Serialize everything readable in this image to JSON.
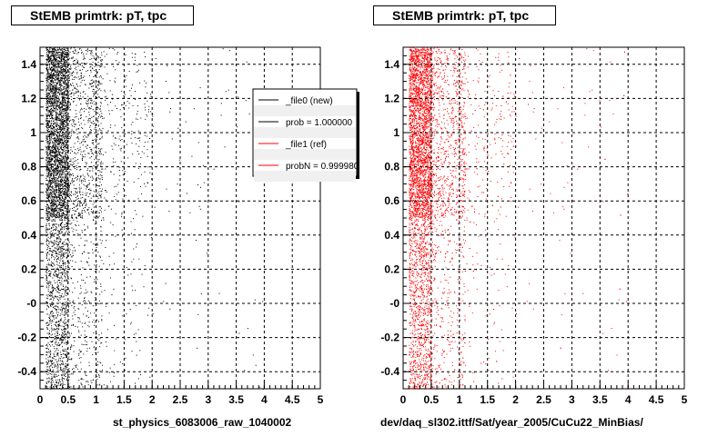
{
  "chart_data": [
    {
      "type": "scatter",
      "title": "StEMB primtrk: pT, tpc",
      "xlabel": "st_physics_6083006_raw_1040002",
      "ylabel": "",
      "xlim": [
        0,
        5
      ],
      "ylim": [
        -0.5,
        1.5
      ],
      "x_ticks": [
        "0",
        "0.5",
        "1",
        "1.5",
        "2",
        "2.5",
        "3",
        "3.5",
        "4",
        "4.5",
        "5"
      ],
      "y_ticks": [
        "-0.4",
        "-0.2",
        "-0",
        "0.2",
        "0.4",
        "0.6",
        "0.8",
        "1",
        "1.2",
        "1.4"
      ],
      "grid": true,
      "legend_position": "top-right",
      "legend": [
        {
          "label": "_file0 (new)",
          "color": "#000000"
        },
        {
          "label": "prob = 1.000000",
          "color": "#000000"
        },
        {
          "label": "_file1 (ref)",
          "color": "#ff0000"
        },
        {
          "label": "probN = 0.999980",
          "color": "#ff0000"
        }
      ],
      "series": [
        {
          "color": "#000000",
          "points": 6000
        }
      ]
    },
    {
      "type": "scatter",
      "title": "StEMB primtrk: pT, tpc",
      "xlabel": "dev/daq_sl302.ittf/Sat/year_2005/CuCu22_MinBias/",
      "ylabel": "",
      "xlim": [
        0,
        5
      ],
      "ylim": [
        -0.5,
        1.5
      ],
      "x_ticks": [
        "0",
        "0.5",
        "1",
        "1.5",
        "2",
        "2.5",
        "3",
        "3.5",
        "4",
        "4.5",
        "5"
      ],
      "y_ticks": [
        "-0.4",
        "-0.2",
        "-0",
        "0.2",
        "0.4",
        "0.6",
        "0.8",
        "1",
        "1.2",
        "1.4"
      ],
      "grid": true,
      "series": [
        {
          "color": "#ff0000",
          "points": 6000
        }
      ]
    }
  ]
}
